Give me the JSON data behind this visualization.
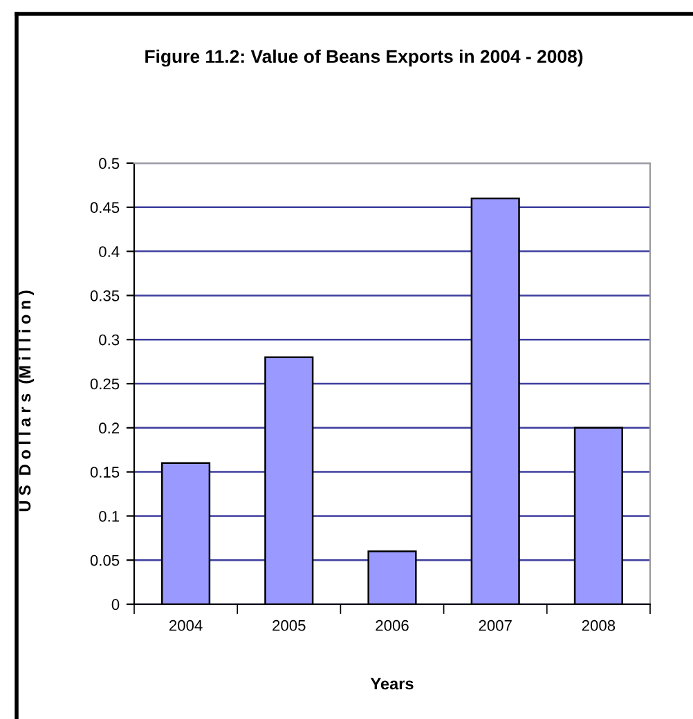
{
  "chart_data": {
    "type": "bar",
    "title": "Figure 11.2: Value of Beans Exports in 2004 - 2008)",
    "xlabel": "Years",
    "ylabel": "U S  D o l l a r s  (M i l l i o n )",
    "categories": [
      "2004",
      "2005",
      "2006",
      "2007",
      "2008"
    ],
    "values": [
      0.16,
      0.28,
      0.06,
      0.46,
      0.2
    ],
    "color": "#9999ff",
    "ylim": [
      0,
      0.5
    ],
    "yticks": [
      0,
      0.05,
      0.1,
      0.15,
      0.2,
      0.25,
      0.3,
      0.35,
      0.4,
      0.45,
      0.5
    ],
    "grid": "y"
  }
}
